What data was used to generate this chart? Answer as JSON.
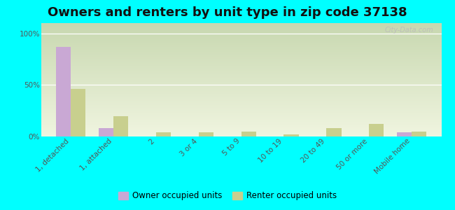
{
  "title": "Owners and renters by unit type in zip code 37138",
  "categories": [
    "1, detached",
    "1, attached",
    "2",
    "3 or 4",
    "5 to 9",
    "10 to 19",
    "20 to 49",
    "50 or more",
    "Mobile home"
  ],
  "owner_values": [
    87,
    8,
    0,
    0,
    0,
    0,
    0,
    0,
    4
  ],
  "renter_values": [
    46,
    20,
    4,
    4,
    5,
    2,
    8,
    12,
    5
  ],
  "owner_color": "#c9a8d4",
  "renter_color": "#c8cf8e",
  "background_color": "#00ffff",
  "plot_bg_top": "#c8d8b0",
  "plot_bg_bottom": "#f0f5e0",
  "ylabel_ticks": [
    "0%",
    "50%",
    "100%"
  ],
  "yticks": [
    0,
    50,
    100
  ],
  "ylim": [
    0,
    110
  ],
  "legend_owner": "Owner occupied units",
  "legend_renter": "Renter occupied units",
  "bar_width": 0.35,
  "title_fontsize": 13,
  "tick_fontsize": 7.5,
  "watermark": "City-Data.com"
}
